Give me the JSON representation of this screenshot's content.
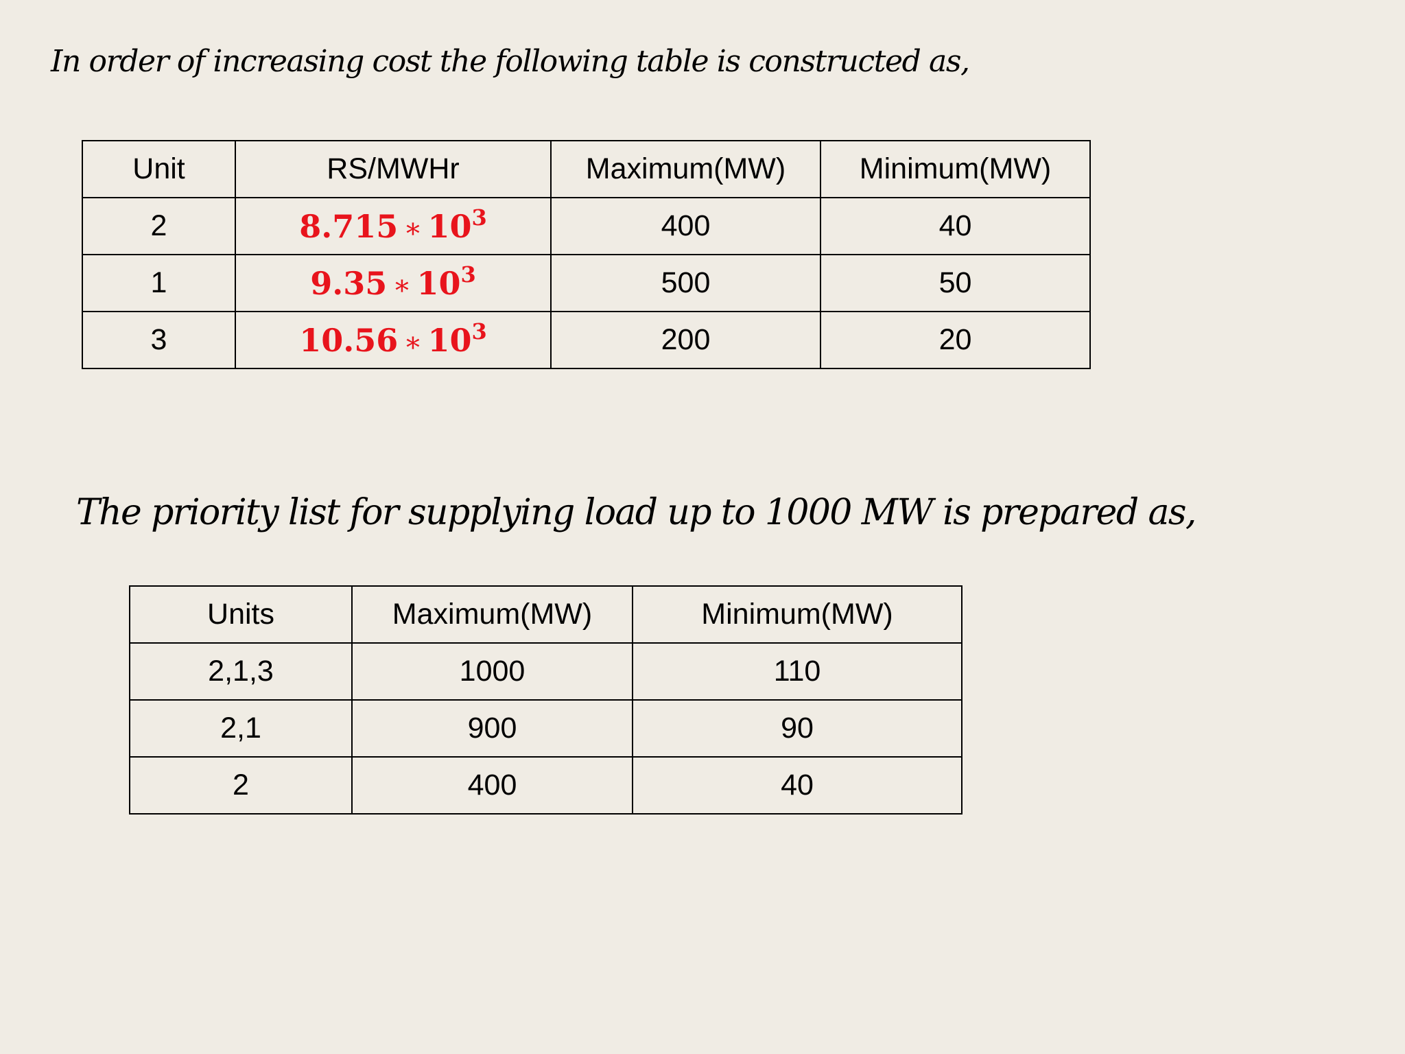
{
  "heading_1": "In order of increasing cost the following table is constructed as,",
  "cost_table": {
    "headers": [
      "Unit",
      "RS/MWHr",
      "Maximum(MW)",
      "Minimum(MW)"
    ],
    "rows": [
      {
        "unit": "2",
        "cost_mantissa": "8.715",
        "cost_op": "∗",
        "cost_base": "10",
        "cost_exponent": "3",
        "max": "400",
        "min": "40"
      },
      {
        "unit": "1",
        "cost_mantissa": "9.35",
        "cost_op": "∗",
        "cost_base": "10",
        "cost_exponent": "3",
        "max": "500",
        "min": "50"
      },
      {
        "unit": "3",
        "cost_mantissa": "10.56",
        "cost_op": "∗",
        "cost_base": "10",
        "cost_exponent": "3",
        "max": "200",
        "min": "20"
      }
    ]
  },
  "heading_2": "The priority list for supplying load up to 1000 MW is prepared as,",
  "priority_table": {
    "headers": [
      "Units",
      "Maximum(MW)",
      "Minimum(MW)"
    ],
    "rows": [
      {
        "units": "2,1,3",
        "max": "1000",
        "min": "110"
      },
      {
        "units": "2,1",
        "max": "900",
        "min": "90"
      },
      {
        "units": "2",
        "max": "400",
        "min": "40"
      }
    ]
  },
  "colors": {
    "background": "#f0ece4",
    "cost_text": "#e8141c",
    "text": "#000000"
  }
}
